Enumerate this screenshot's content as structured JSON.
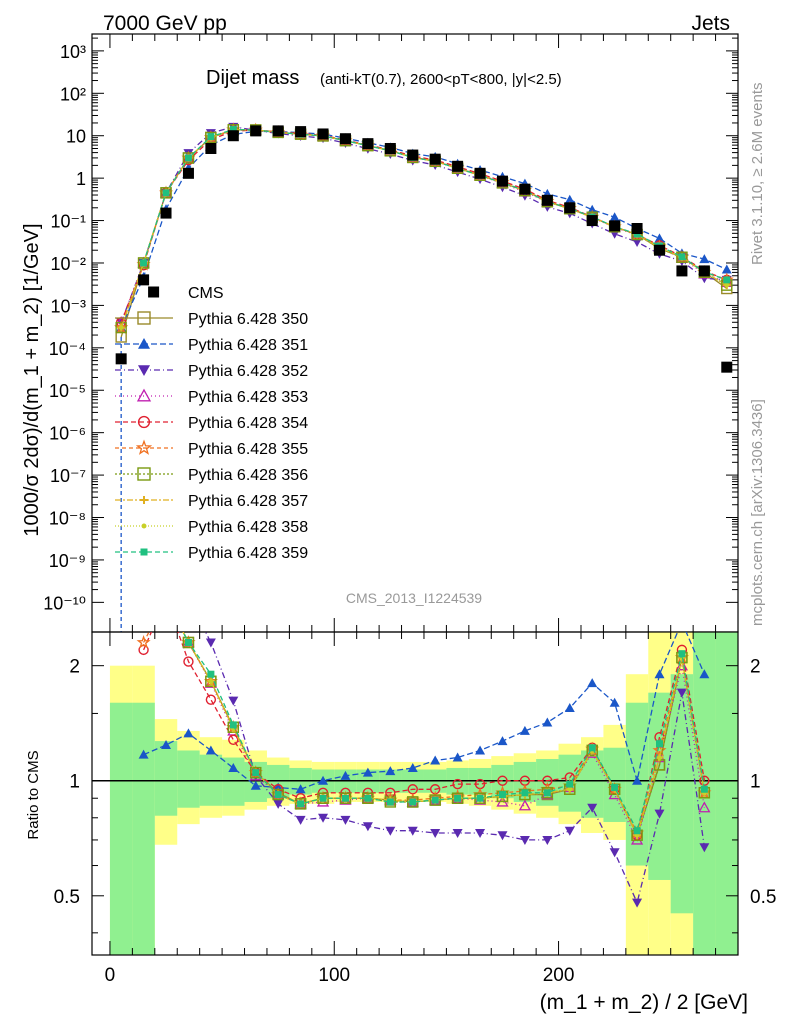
{
  "header": {
    "left": "7000 GeV pp",
    "right": "Jets",
    "side_top": "Rivet 3.1.10, ≥ 2.6M events",
    "side_bottom": "mcplots.cern.ch [arXiv:1306.3436]",
    "watermark": "CMS_2013_I1224539"
  },
  "chart_data": [
    {
      "type": "scatter",
      "title": "Dijet mass",
      "subtitle": "(anti-kT(0.7), 2600<pT<800, |y|<2.5)",
      "ylabel": "1000/σ 2dσ)/d(m_1 + m_2) [1/GeV]",
      "yscale": "log",
      "xlim": [
        -8,
        280
      ],
      "ylim": [
        2e-11,
        2500
      ],
      "ytick_labels": [
        "10⁻¹⁰",
        "10⁻⁹",
        "10⁻⁸",
        "10⁻⁷",
        "10⁻⁶",
        "10⁻⁵",
        "10⁻⁴",
        "10⁻³",
        "10⁻²",
        "10⁻¹",
        "1",
        "10",
        "10²",
        "10³"
      ],
      "x": [
        5,
        15,
        25,
        35,
        45,
        55,
        65,
        75,
        85,
        95,
        105,
        115,
        125,
        135,
        145,
        155,
        165,
        175,
        185,
        195,
        205,
        215,
        225,
        235,
        245,
        255,
        265,
        275
      ],
      "cms": [
        5.5e-05,
        0.004,
        0.15,
        1.3,
        5.0,
        10.0,
        13.0,
        13.0,
        12.5,
        11.0,
        8.5,
        6.5,
        5.0,
        3.5,
        2.8,
        1.9,
        1.3,
        0.85,
        0.55,
        0.3,
        0.2,
        0.1,
        0.075,
        0.065,
        0.02,
        0.0065,
        0.0065,
        3.5e-05
      ],
      "series": [
        {
          "name": "CMS",
          "color": "#000000",
          "marker": "square-filled",
          "dash": "none"
        },
        {
          "name": "Pythia 6.428 350",
          "color": "#9a8a2a",
          "marker": "square-open",
          "dash": "solid",
          "ratio": [
            null,
            null,
            3.0,
            2.3,
            1.82,
            1.38,
            1.05,
            0.93,
            0.87,
            0.9,
            0.9,
            0.9,
            0.89,
            0.88,
            0.89,
            0.9,
            0.9,
            0.91,
            0.92,
            0.92,
            0.95,
            1.2,
            0.95,
            0.72,
            1.1,
            2.1,
            0.93,
            null
          ]
        },
        {
          "name": "Pythia 6.428 351",
          "color": "#1a56c8",
          "marker": "triangle-up",
          "dash": "6,3",
          "ratio": [
            null,
            1.17,
            1.24,
            1.33,
            1.2,
            1.08,
            0.97,
            0.96,
            0.95,
            1.0,
            1.03,
            1.05,
            1.06,
            1.08,
            1.13,
            1.15,
            1.2,
            1.27,
            1.35,
            1.42,
            1.55,
            1.8,
            1.6,
            1.0,
            1.9,
            2.6,
            1.9,
            null
          ]
        },
        {
          "name": "Pythia 6.428 352",
          "color": "#5a2ab0",
          "marker": "triangle-down",
          "dash": "6,3,1,3",
          "ratio": [
            null,
            null,
            3.0,
            3.0,
            2.3,
            1.62,
            1.03,
            0.87,
            0.79,
            0.8,
            0.79,
            0.76,
            0.74,
            0.74,
            0.73,
            0.73,
            0.73,
            0.72,
            0.7,
            0.7,
            0.74,
            0.85,
            0.65,
            0.48,
            0.82,
            1.7,
            0.67,
            null
          ]
        },
        {
          "name": "Pythia 6.428 353",
          "color": "#c020b0",
          "marker": "triangle-open",
          "dash": "1,3",
          "ratio": [
            null,
            null,
            3.0,
            2.3,
            1.8,
            1.35,
            1.03,
            0.92,
            0.87,
            0.88,
            0.89,
            0.9,
            0.89,
            0.88,
            0.89,
            0.9,
            0.89,
            0.88,
            0.86,
            0.92,
            0.96,
            1.18,
            0.92,
            0.7,
            1.15,
            2.0,
            0.85,
            null
          ]
        },
        {
          "name": "Pythia 6.428 354",
          "color": "#e02030",
          "marker": "circle-open",
          "dash": "5,3",
          "ratio": [
            null,
            2.2,
            3.0,
            2.05,
            1.63,
            1.28,
            1.05,
            0.95,
            0.9,
            0.93,
            0.93,
            0.93,
            0.93,
            0.95,
            0.95,
            0.98,
            0.98,
            1.0,
            1.0,
            1.0,
            1.02,
            1.22,
            0.95,
            0.72,
            1.3,
            2.2,
            1.0,
            null
          ]
        },
        {
          "name": "Pythia 6.428 355",
          "color": "#f07020",
          "marker": "star-open",
          "dash": "4,3",
          "ratio": [
            null,
            2.3,
            3.0,
            2.3,
            1.82,
            1.38,
            1.05,
            0.92,
            0.87,
            0.9,
            0.9,
            0.9,
            0.89,
            0.89,
            0.9,
            0.91,
            0.92,
            0.93,
            0.94,
            0.95,
            0.97,
            1.21,
            0.95,
            0.73,
            1.2,
            2.1,
            0.93,
            null
          ]
        },
        {
          "name": "Pythia 6.428 356",
          "color": "#7a9a10",
          "marker": "square-open",
          "dash": "2,2",
          "ratio": [
            null,
            null,
            3.0,
            2.3,
            1.82,
            1.38,
            1.05,
            0.92,
            0.87,
            0.9,
            0.9,
            0.9,
            0.88,
            0.88,
            0.89,
            0.9,
            0.9,
            0.91,
            0.92,
            0.93,
            0.95,
            1.2,
            0.95,
            0.72,
            1.1,
            2.1,
            0.93,
            null
          ]
        },
        {
          "name": "Pythia 6.428 357",
          "color": "#e0b020",
          "marker": "cross",
          "dash": "6,2,2,2",
          "ratio": [
            null,
            null,
            3.0,
            2.3,
            1.82,
            1.37,
            1.05,
            0.92,
            0.87,
            0.9,
            0.9,
            0.9,
            0.89,
            0.88,
            0.89,
            0.9,
            0.9,
            0.91,
            0.92,
            0.93,
            0.95,
            1.2,
            0.95,
            0.72,
            1.15,
            2.1,
            0.93,
            null
          ]
        },
        {
          "name": "Pythia 6.428 358",
          "color": "#c8d028",
          "marker": "dot",
          "dash": "1,2",
          "ratio": [
            null,
            null,
            3.0,
            2.3,
            1.82,
            1.37,
            1.05,
            0.92,
            0.87,
            0.9,
            0.9,
            0.9,
            0.89,
            0.88,
            0.89,
            0.9,
            0.9,
            0.91,
            0.92,
            0.93,
            0.95,
            1.2,
            0.95,
            0.72,
            1.15,
            2.1,
            0.93,
            null
          ]
        },
        {
          "name": "Pythia 6.428 359",
          "color": "#20c080",
          "marker": "square-filled-small",
          "dash": "5,3",
          "ratio": [
            null,
            null,
            3.0,
            2.3,
            1.9,
            1.4,
            1.05,
            0.92,
            0.87,
            0.9,
            0.9,
            0.9,
            0.88,
            0.88,
            0.89,
            0.9,
            0.9,
            0.92,
            0.93,
            0.93,
            0.98,
            1.22,
            0.96,
            0.74,
            1.25,
            2.15,
            0.95,
            null
          ]
        }
      ]
    },
    {
      "type": "scatter",
      "xlabel": "(m_1 + m_2) / 2 [GeV]",
      "ylabel": "Ratio to CMS",
      "yscale": "log",
      "xlim": [
        -8,
        280
      ],
      "ylim": [
        0.35,
        2.45
      ],
      "xtick_labels": [
        "0",
        "100",
        "200"
      ],
      "ytick_labels": [
        "0.5",
        "1",
        "2"
      ],
      "bands": {
        "edges": [
          0,
          10,
          20,
          30,
          40,
          50,
          60,
          70,
          80,
          90,
          100,
          110,
          120,
          130,
          140,
          150,
          160,
          170,
          180,
          190,
          200,
          210,
          220,
          230,
          240,
          250,
          260,
          270,
          280
        ],
        "stat_lo": [
          0.35,
          0.35,
          0.81,
          0.85,
          0.86,
          0.86,
          0.88,
          0.9,
          0.92,
          0.93,
          0.93,
          0.93,
          0.93,
          0.93,
          0.93,
          0.92,
          0.92,
          0.9,
          0.88,
          0.86,
          0.83,
          0.8,
          0.78,
          0.6,
          0.55,
          0.45,
          0.35,
          0.35
        ],
        "stat_hi": [
          1.6,
          1.6,
          1.27,
          1.2,
          1.17,
          1.15,
          1.12,
          1.1,
          1.08,
          1.07,
          1.07,
          1.07,
          1.07,
          1.07,
          1.07,
          1.08,
          1.08,
          1.1,
          1.12,
          1.14,
          1.17,
          1.2,
          1.22,
          1.6,
          1.7,
          1.9,
          2.45,
          2.45
        ],
        "syst_lo": [
          0.35,
          0.35,
          0.68,
          0.77,
          0.8,
          0.81,
          0.84,
          0.86,
          0.87,
          0.87,
          0.88,
          0.88,
          0.88,
          0.88,
          0.88,
          0.87,
          0.86,
          0.84,
          0.82,
          0.8,
          0.77,
          0.73,
          0.7,
          0.35,
          0.35,
          0.35,
          0.35,
          0.35
        ],
        "syst_hi": [
          2.0,
          2.0,
          1.45,
          1.35,
          1.3,
          1.28,
          1.2,
          1.15,
          1.13,
          1.12,
          1.12,
          1.12,
          1.12,
          1.12,
          1.12,
          1.13,
          1.14,
          1.16,
          1.18,
          1.2,
          1.25,
          1.3,
          1.4,
          1.9,
          2.45,
          2.45,
          2.45,
          2.45
        ]
      }
    }
  ]
}
